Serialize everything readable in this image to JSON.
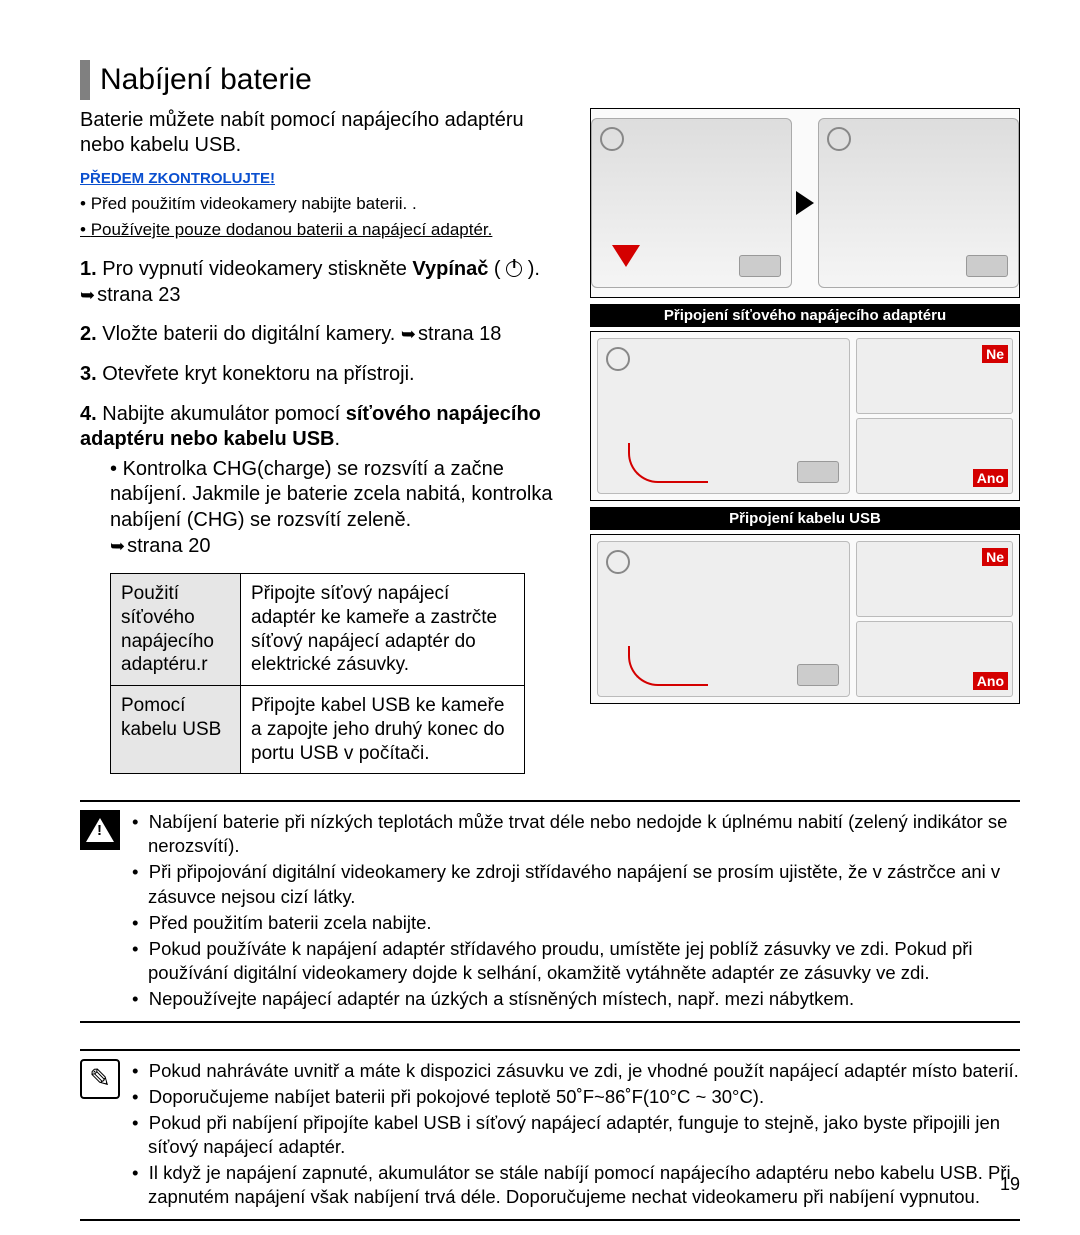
{
  "title": "Nabíjení baterie",
  "intro": "Baterie můžete nabít pomocí napájecího adaptéru nebo kabelu USB.",
  "precheck_label": "PŘEDEM ZKONTROLUJTE!",
  "precheck_items": [
    "Před použitím videokamery nabijte baterii. .",
    "Používejte pouze dodanou baterii a napájecí adaptér."
  ],
  "steps": {
    "s1a": "Pro vypnutí videokamery stiskněte ",
    "s1b": "Vypínač",
    "s1c": "strana 23",
    "s2a": "Vložte baterii do digitální kamery. ",
    "s2b": "strana 18",
    "s3": "Otevřete kryt konektoru na přístroji.",
    "s4a": "Nabijte akumulátor pomocí ",
    "s4b": "síťového napájecího adaptéru nebo kabelu USB",
    "s4sub": "Kontrolka CHG(charge) se rozsvítí a začne nabíjení. Jakmile je baterie zcela nabitá, kontrolka nabíjení (CHG) se rozsvítí zeleně. ",
    "s4subpage": "strana 20"
  },
  "table": {
    "r1label": "Použití síťového napájecího adaptéru.r",
    "r1text": "Připojte síťový napájecí adaptér ke kameře a zastrčte síťový napájecí adaptér do elektrické zásuvky.",
    "r2label": "Pomocí kabelu USB",
    "r2text": "Připojte kabel USB ke kameře a zapojte jeho druhý konec do portu USB v počítači."
  },
  "captions": {
    "ac": "Připojení síťového napájecího adaptéru",
    "usb": "Připojení kabelu USB"
  },
  "labels": {
    "ne": "Ne",
    "ano": "Ano"
  },
  "warnings": [
    "Nabíjení baterie při nízkých teplotách může trvat déle nebo nedojde k úplnému nabití (zelený indikátor se nerozsvítí).",
    "Při připojování digitální videokamery ke zdroji střídavého napájení se prosím ujistěte, že v zástrčce ani v zásuvce nejsou cizí látky.",
    "Před použitím baterii zcela nabijte.",
    "Pokud používáte k napájení adaptér střídavého proudu, umístěte jej poblíž zásuvky ve zdi. Pokud při používání digitální videokamery dojde k selhání, okamžitě vytáhněte adaptér ze zásuvky ve zdi.",
    "Nepoužívejte napájecí adaptér na úzkých a stísněných místech, např. mezi nábytkem."
  ],
  "notes": [
    "Pokud nahráváte uvnitř a máte k dispozici zásuvku ve zdi, je vhodné použít napájecí adaptér místo baterií.",
    "Doporučujeme nabíjet baterii při pokojové teplotě 50˚F~86˚F(10°C ~ 30°C).",
    "Pokud při nabíjení připojíte kabel USB i síťový napájecí adaptér, funguje to stejně, jako byste připojili jen síťový napájecí adaptér.",
    "Il když je napájení zapnuté, akumulátor se stále nabíjí pomocí napájecího adaptéru nebo kabelu USB. Při zapnutém napájení však nabíjení trvá déle. Doporučujeme nechat videokameru při nabíjení vypnutou."
  ],
  "page_number": "19",
  "colors": {
    "link": "#0a4fcf",
    "red": "#d40000",
    "grey_bg": "#e6e6e6"
  }
}
